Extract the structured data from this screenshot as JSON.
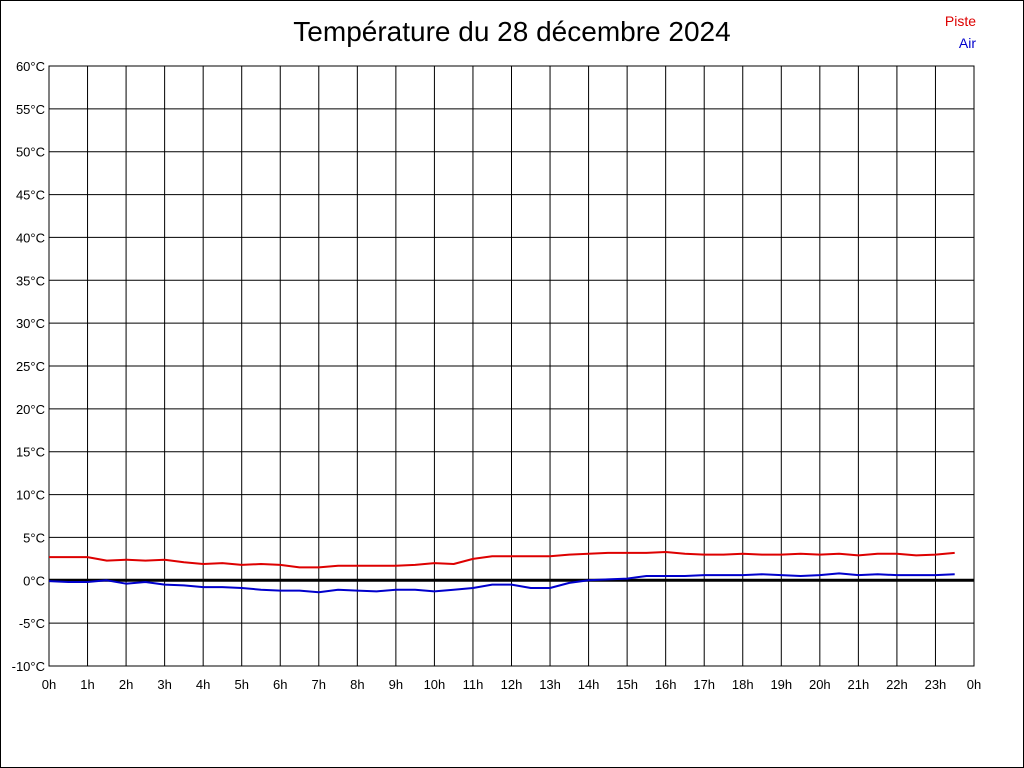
{
  "chart_data": {
    "type": "line",
    "title": "Température du 28 décembre 2024",
    "xlabel": "",
    "ylabel": "",
    "ylim": [
      -10,
      60
    ],
    "xlim": [
      0,
      24
    ],
    "grid": true,
    "legend_position": "top-right",
    "x_ticks": [
      "0h",
      "1h",
      "2h",
      "3h",
      "4h",
      "5h",
      "6h",
      "7h",
      "8h",
      "9h",
      "10h",
      "11h",
      "12h",
      "13h",
      "14h",
      "15h",
      "16h",
      "17h",
      "18h",
      "19h",
      "20h",
      "21h",
      "22h",
      "23h",
      "0h"
    ],
    "y_ticks": [
      "60°C",
      "55°C",
      "50°C",
      "45°C",
      "40°C",
      "35°C",
      "30°C",
      "25°C",
      "20°C",
      "15°C",
      "10°C",
      "5°C",
      "0°C",
      "-5°C",
      "-10°C"
    ],
    "y_tick_values": [
      60,
      55,
      50,
      45,
      40,
      35,
      30,
      25,
      20,
      15,
      10,
      5,
      0,
      -5,
      -10
    ],
    "zero_line": 0,
    "series": [
      {
        "name": "Piste",
        "color": "#dd0000",
        "x": [
          0,
          0.5,
          1,
          1.5,
          2,
          2.5,
          3,
          3.5,
          4,
          4.5,
          5,
          5.5,
          6,
          6.5,
          7,
          7.5,
          8,
          8.5,
          9,
          9.5,
          10,
          10.5,
          11,
          11.5,
          12,
          12.5,
          13,
          13.5,
          14,
          14.5,
          15,
          15.5,
          16,
          16.5,
          17,
          17.5,
          18,
          18.5,
          19,
          19.5,
          20,
          20.5,
          21,
          21.5,
          22,
          22.5,
          23,
          23.5
        ],
        "values": [
          2.7,
          2.7,
          2.7,
          2.3,
          2.4,
          2.3,
          2.4,
          2.1,
          1.9,
          2.0,
          1.8,
          1.9,
          1.8,
          1.5,
          1.5,
          1.7,
          1.7,
          1.7,
          1.7,
          1.8,
          2.0,
          1.9,
          2.5,
          2.8,
          2.8,
          2.8,
          2.8,
          3.0,
          3.1,
          3.2,
          3.2,
          3.2,
          3.3,
          3.1,
          3.0,
          3.0,
          3.1,
          3.0,
          3.0,
          3.1,
          3.0,
          3.1,
          2.9,
          3.1,
          3.1,
          2.9,
          3.0,
          3.2
        ]
      },
      {
        "name": "Air",
        "color": "#0000cc",
        "x": [
          0,
          0.5,
          1,
          1.5,
          2,
          2.5,
          3,
          3.5,
          4,
          4.5,
          5,
          5.5,
          6,
          6.5,
          7,
          7.5,
          8,
          8.5,
          9,
          9.5,
          10,
          10.5,
          11,
          11.5,
          12,
          12.5,
          13,
          13.5,
          14,
          14.5,
          15,
          15.5,
          16,
          16.5,
          17,
          17.5,
          18,
          18.5,
          19,
          19.5,
          20,
          20.5,
          21,
          21.5,
          22,
          22.5,
          23,
          23.5
        ],
        "values": [
          -0.1,
          -0.2,
          -0.2,
          0.0,
          -0.4,
          -0.2,
          -0.5,
          -0.6,
          -0.8,
          -0.8,
          -0.9,
          -1.1,
          -1.2,
          -1.2,
          -1.4,
          -1.1,
          -1.2,
          -1.3,
          -1.1,
          -1.1,
          -1.3,
          -1.1,
          -0.9,
          -0.5,
          -0.5,
          -0.9,
          -0.9,
          -0.3,
          0.0,
          0.1,
          0.2,
          0.5,
          0.5,
          0.5,
          0.6,
          0.6,
          0.6,
          0.7,
          0.6,
          0.5,
          0.6,
          0.8,
          0.6,
          0.7,
          0.6,
          0.6,
          0.6,
          0.7
        ]
      }
    ]
  }
}
